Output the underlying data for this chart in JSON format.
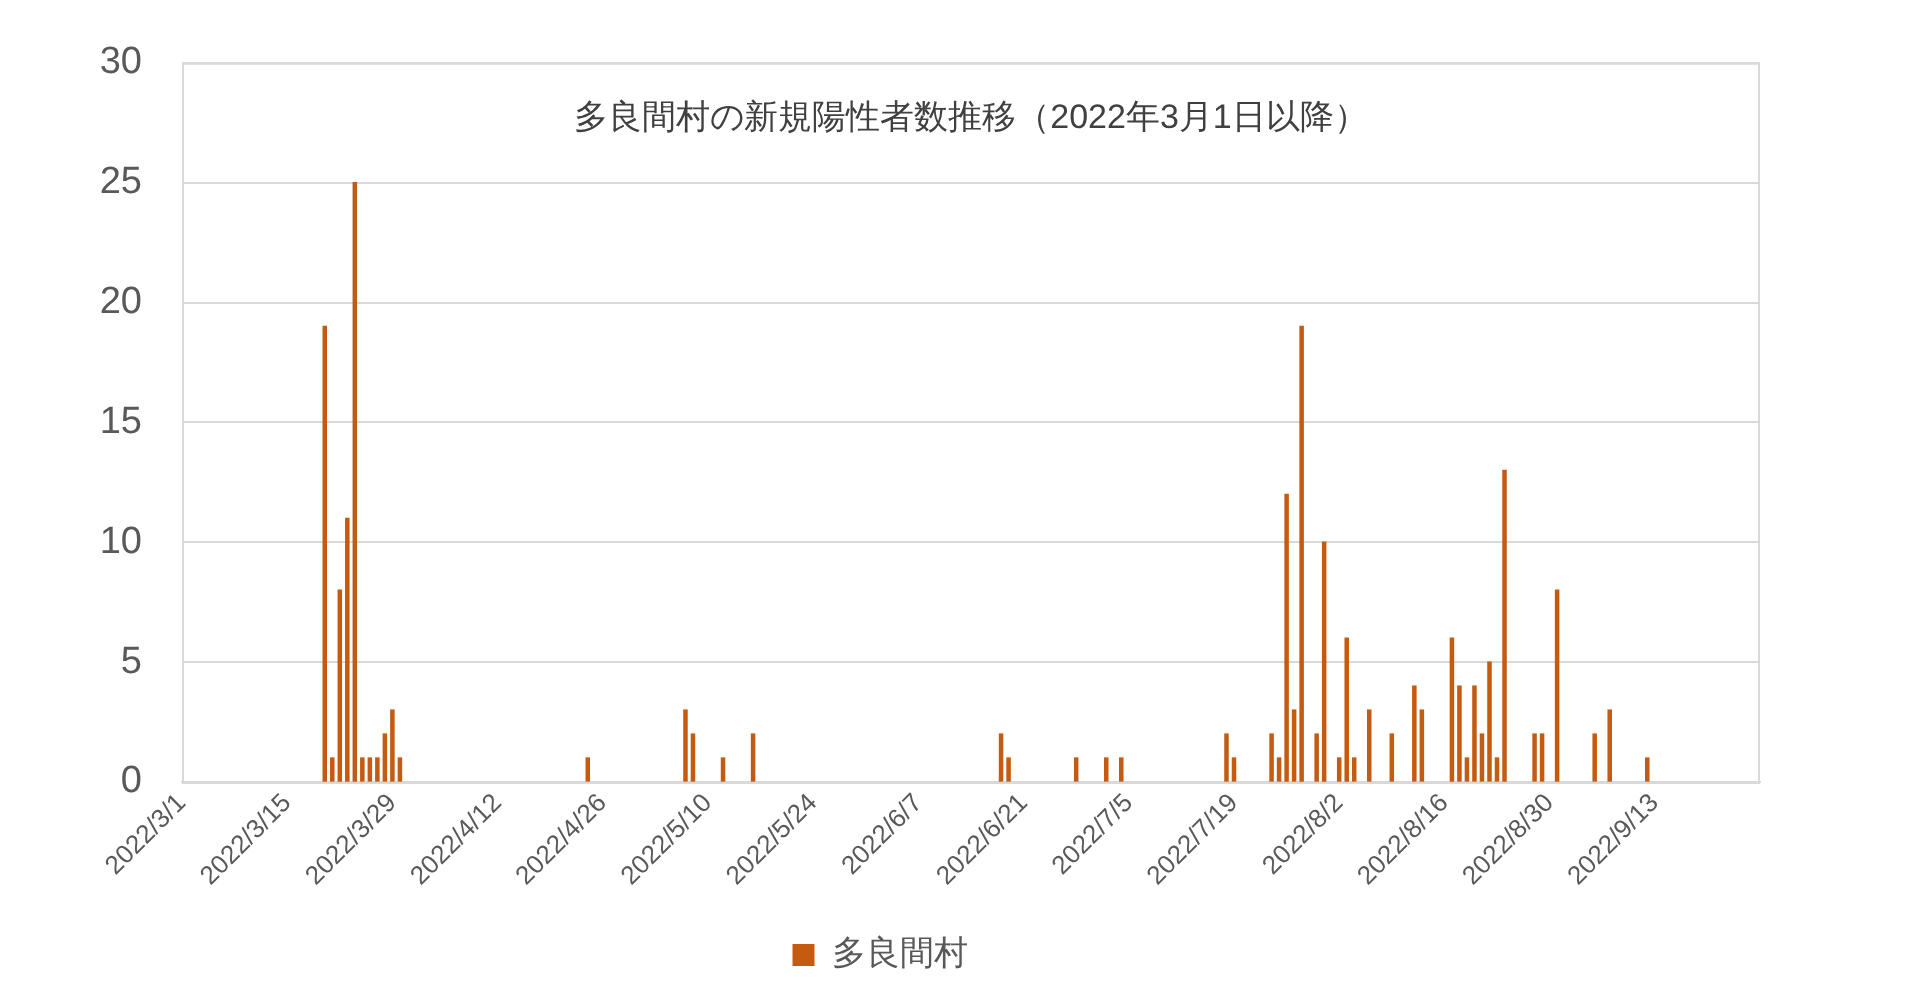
{
  "chart_data": {
    "type": "bar",
    "title": "多良間村の新規陽性者数推移（2022年3月1日以降）",
    "x": [
      "2022-03-20",
      "2022-03-21",
      "2022-03-22",
      "2022-03-23",
      "2022-03-24",
      "2022-03-25",
      "2022-03-26",
      "2022-03-27",
      "2022-03-28",
      "2022-03-29",
      "2022-03-30",
      "2022-04-24",
      "2022-05-07",
      "2022-05-08",
      "2022-05-12",
      "2022-05-16",
      "2022-06-18",
      "2022-06-19",
      "2022-06-28",
      "2022-07-02",
      "2022-07-04",
      "2022-07-18",
      "2022-07-19",
      "2022-07-24",
      "2022-07-25",
      "2022-07-26",
      "2022-07-27",
      "2022-07-28",
      "2022-07-30",
      "2022-07-31",
      "2022-08-02",
      "2022-08-03",
      "2022-08-04",
      "2022-08-06",
      "2022-08-09",
      "2022-08-12",
      "2022-08-13",
      "2022-08-17",
      "2022-08-18",
      "2022-08-19",
      "2022-08-20",
      "2022-08-21",
      "2022-08-22",
      "2022-08-23",
      "2022-08-24",
      "2022-08-28",
      "2022-08-29",
      "2022-08-31",
      "2022-09-05",
      "2022-09-07",
      "2022-09-12"
    ],
    "series": [
      {
        "name": "多良間村",
        "color": "#c55a11",
        "values": [
          19,
          1,
          8,
          11,
          25,
          1,
          1,
          1,
          2,
          3,
          1,
          1,
          3,
          2,
          1,
          2,
          2,
          1,
          1,
          1,
          1,
          2,
          1,
          2,
          1,
          12,
          3,
          19,
          2,
          10,
          1,
          6,
          1,
          3,
          2,
          4,
          3,
          6,
          4,
          1,
          4,
          2,
          5,
          1,
          13,
          2,
          2,
          8,
          2,
          3,
          1
        ]
      }
    ],
    "xlim": [
      "2022-03-01",
      "2022-09-27"
    ],
    "xticks": [
      {
        "value": "2022-03-01",
        "label": "2022/3/1"
      },
      {
        "value": "2022-03-15",
        "label": "2022/3/15"
      },
      {
        "value": "2022-03-29",
        "label": "2022/3/29"
      },
      {
        "value": "2022-04-12",
        "label": "2022/4/12"
      },
      {
        "value": "2022-04-26",
        "label": "2022/4/26"
      },
      {
        "value": "2022-05-10",
        "label": "2022/5/10"
      },
      {
        "value": "2022-05-24",
        "label": "2022/5/24"
      },
      {
        "value": "2022-06-07",
        "label": "2022/6/7"
      },
      {
        "value": "2022-06-21",
        "label": "2022/6/21"
      },
      {
        "value": "2022-07-05",
        "label": "2022/7/5"
      },
      {
        "value": "2022-07-19",
        "label": "2022/7/19"
      },
      {
        "value": "2022-08-02",
        "label": "2022/8/2"
      },
      {
        "value": "2022-08-16",
        "label": "2022/8/16"
      },
      {
        "value": "2022-08-30",
        "label": "2022/8/30"
      },
      {
        "value": "2022-09-13",
        "label": "2022/9/13"
      }
    ],
    "ylim": [
      0,
      30
    ],
    "yticks": [
      0,
      5,
      10,
      15,
      20,
      25,
      30
    ],
    "grid": "y",
    "legend": "bottom"
  }
}
